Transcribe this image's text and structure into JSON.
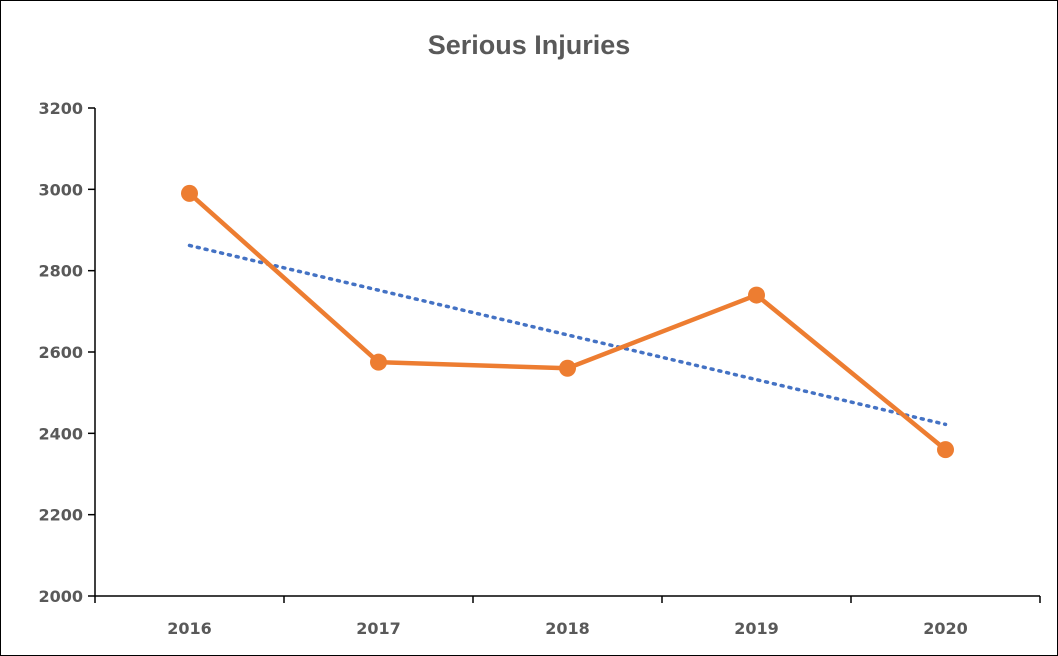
{
  "chart_data": {
    "type": "line",
    "title": "Serious Injuries",
    "xlabel": "",
    "ylabel": "",
    "categories": [
      "2016",
      "2017",
      "2018",
      "2019",
      "2020"
    ],
    "series": [
      {
        "values": [
          2990,
          2575,
          2560,
          2740,
          2360
        ],
        "color": "#ED7D31",
        "marker": "circle"
      }
    ],
    "trendline": {
      "type": "linear",
      "style": "dotted",
      "color": "#4472C4",
      "start": 2862,
      "end": 2422
    },
    "ylim": [
      2000,
      3200
    ],
    "yticks": [
      "2000",
      "2200",
      "2400",
      "2600",
      "2800",
      "3000",
      "3200"
    ],
    "grid": false,
    "legend": "none"
  }
}
